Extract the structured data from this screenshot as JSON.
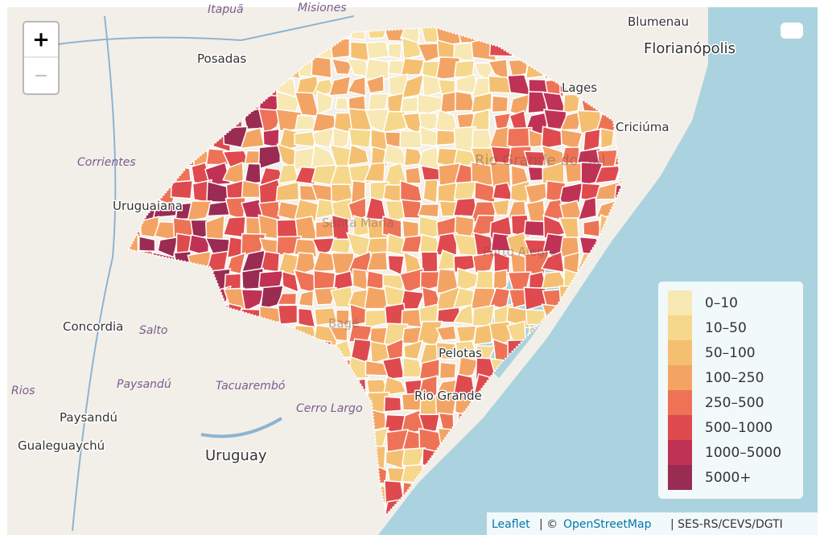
{
  "map": {
    "zoom": {
      "in": "+",
      "out": "−"
    },
    "places": [
      "Posadas",
      "Blumenau",
      "Florianópolis",
      "Lages",
      "Criciúma",
      "Corrientes",
      "Uruguaiana",
      "Santa Maria",
      "Rio Grande do Sul",
      "Porto Alegre",
      "Concordia",
      "Salto",
      "Paysandú",
      "Tacuarembó",
      "Cerro Largo",
      "Paysandú",
      "Gualeguaychú",
      "Uruguay",
      "Pelotas",
      "Rio Grande",
      "Bagé",
      "Rios",
      "Itapuã",
      "Misiones"
    ],
    "legend": [
      {
        "label": "0–10",
        "color": "#f8e8b4"
      },
      {
        "label": "10–50",
        "color": "#f6d88c"
      },
      {
        "label": "50–100",
        "color": "#f5bf72"
      },
      {
        "label": "100–250",
        "color": "#f3a464"
      },
      {
        "label": "250–500",
        "color": "#ee7356"
      },
      {
        "label": "500–1000",
        "color": "#de4a4e"
      },
      {
        "label": "1000–5000",
        "color": "#c03255"
      },
      {
        "label": "5000+",
        "color": "#9a2b52"
      }
    ],
    "attribution": {
      "leaflet": "Leaflet",
      "copyright": "| ©",
      "osm": "OpenStreetMap",
      "source": "| SES-RS/CEVS/DGTI"
    }
  }
}
